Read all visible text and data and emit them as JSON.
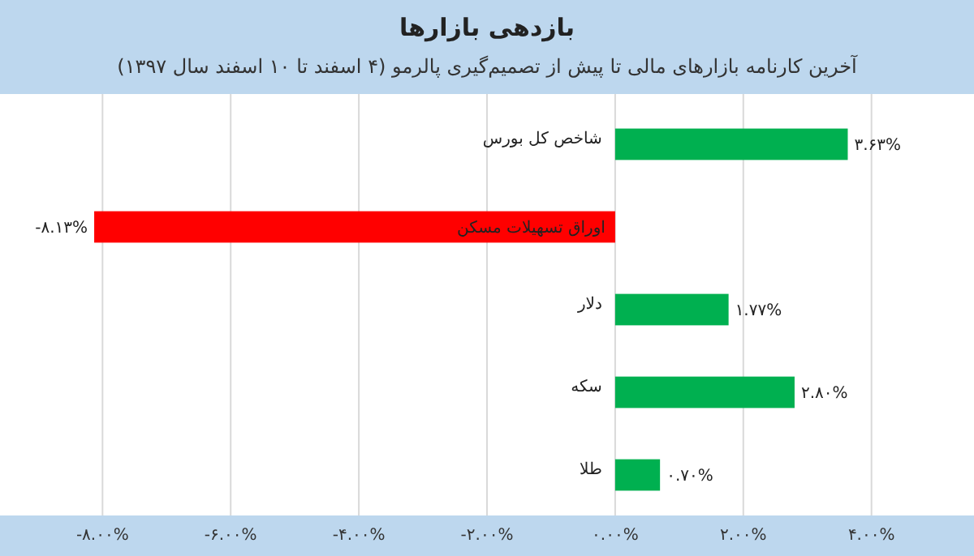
{
  "chart_data": {
    "type": "bar",
    "orientation": "horizontal",
    "title": "بازدهی بازارها",
    "subtitle": "آخرین کارنامه بازارهای مالی تا پیش از تصمیم‌گیری پالرمو (۴ اسفند تا ۱۰ اسفند سال ۱۳۹۷)",
    "categories": [
      "شاخص کل بورس",
      "اوراق تسهیلات مسکن",
      "دلار",
      "سکه",
      "طلا"
    ],
    "values": [
      3.63,
      -8.13,
      1.77,
      2.8,
      0.7
    ],
    "colors": [
      "#00b050",
      "#ff0000",
      "#00b050",
      "#00b050",
      "#00b050"
    ],
    "value_labels": [
      "۳.۶۳%",
      "-۸.۱۳%",
      "۱.۷۷%",
      "۲.۸۰%",
      "۰.۷۰%"
    ],
    "xlim": [
      -9.6,
      5.6
    ],
    "xticks": [
      {
        "value": -8,
        "label": "-۸.۰۰%"
      },
      {
        "value": -6,
        "label": "-۶.۰۰%"
      },
      {
        "value": -4,
        "label": "-۴.۰۰%"
      },
      {
        "value": -2,
        "label": "-۲.۰۰%"
      },
      {
        "value": 0,
        "label": "۰.۰۰%"
      },
      {
        "value": 2,
        "label": "۲.۰۰%"
      },
      {
        "value": 4,
        "label": "۴.۰۰%"
      }
    ],
    "grid": "x"
  }
}
